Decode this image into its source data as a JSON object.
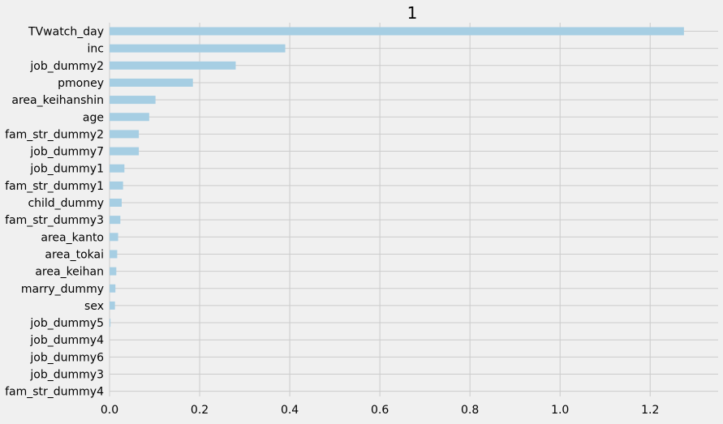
{
  "chart_data": {
    "type": "bar",
    "orientation": "horizontal",
    "title": "1",
    "xlabel": "",
    "ylabel": "",
    "categories": [
      "TVwatch_day",
      "inc",
      "job_dummy2",
      "pmoney",
      "area_keihanshin",
      "age",
      "fam_str_dummy2",
      "job_dummy7",
      "job_dummy1",
      "fam_str_dummy1",
      "child_dummy",
      "fam_str_dummy3",
      "area_kanto",
      "area_tokai",
      "area_keihan",
      "marry_dummy",
      "sex",
      "job_dummy5",
      "job_dummy4",
      "job_dummy6",
      "job_dummy3",
      "fam_str_dummy4"
    ],
    "values": [
      1.275,
      0.39,
      0.28,
      0.185,
      0.102,
      0.088,
      0.065,
      0.065,
      0.033,
      0.03,
      0.027,
      0.024,
      0.019,
      0.017,
      0.015,
      0.013,
      0.012,
      0.002,
      0.0,
      0.0,
      0.0,
      0.0
    ],
    "xticks": [
      "0.0",
      "0.2",
      "0.4",
      "0.6",
      "0.8",
      "1.0",
      "1.2"
    ],
    "xlim": [
      0,
      1.34
    ],
    "grid": true,
    "colors": {
      "bar": "#a6cee3",
      "grid": "#cbcbcb",
      "background": "#f0f0f0",
      "text": "#000000"
    }
  }
}
